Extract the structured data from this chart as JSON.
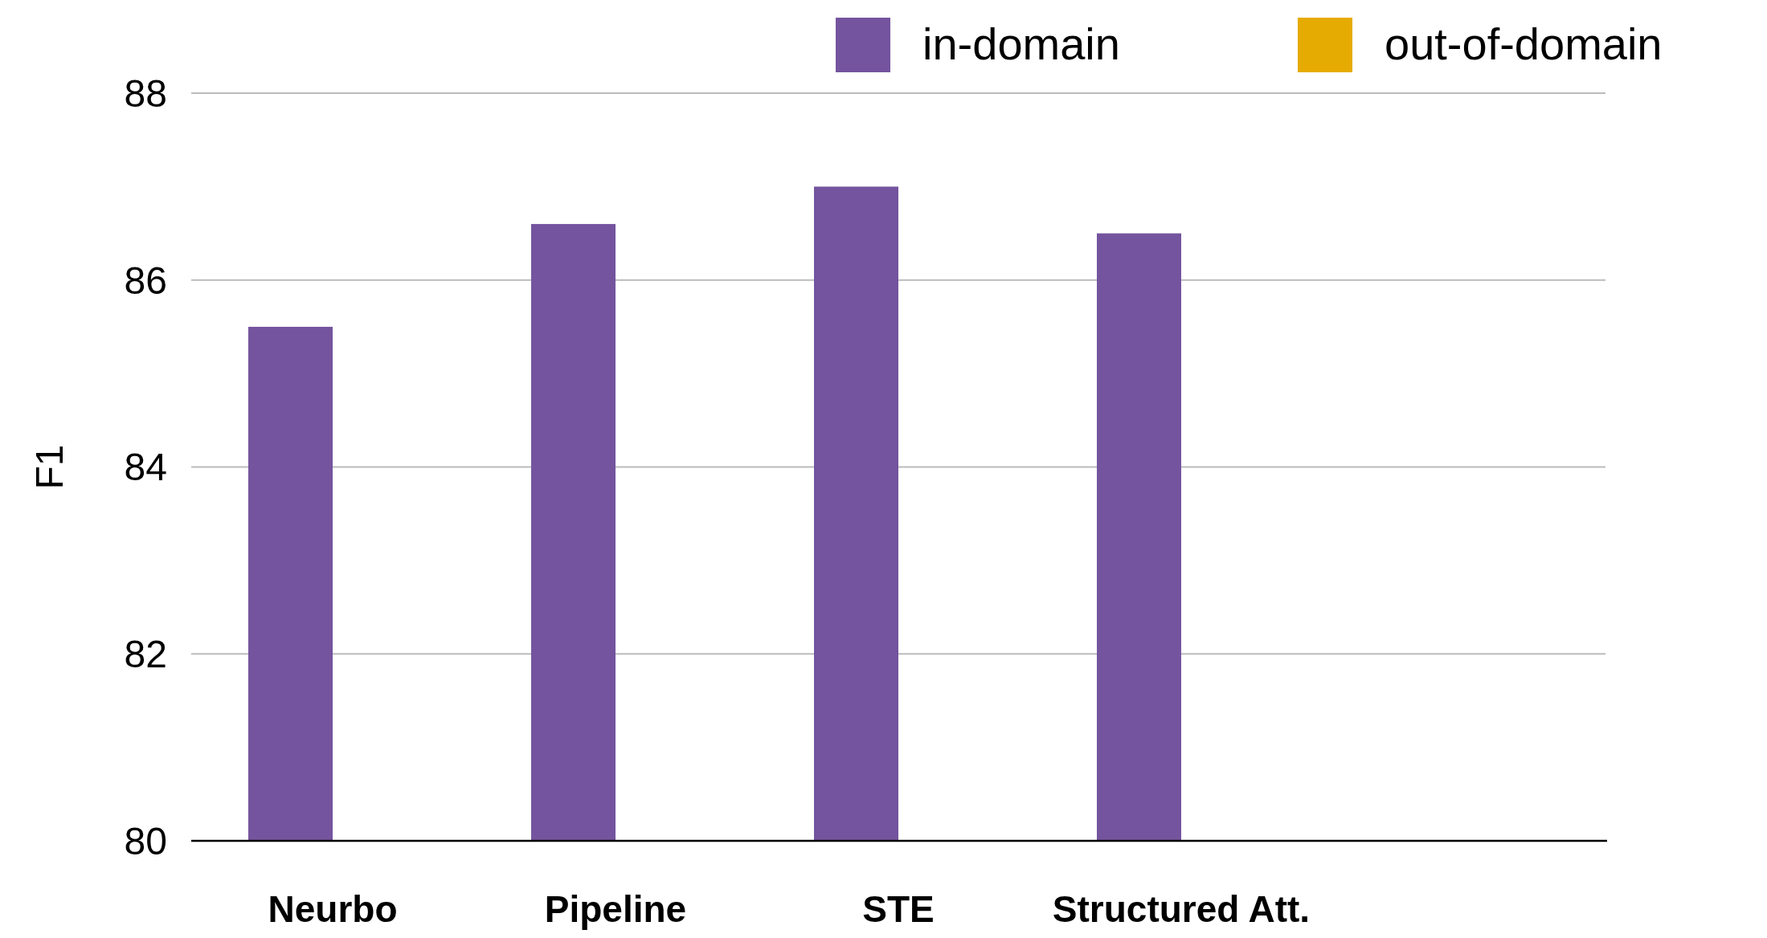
{
  "chart_data": {
    "type": "bar",
    "ylabel": "F1",
    "categories": [
      "Neurbo",
      "Pipeline",
      "STE",
      "Structured Att.",
      null
    ],
    "series": [
      {
        "name": "in-domain",
        "color": "#74549e",
        "values": [
          85.5,
          86.6,
          87.0,
          86.5,
          null
        ]
      },
      {
        "name": "out-of-domain",
        "color": "#e6ab02",
        "values": [
          null,
          null,
          null,
          null,
          null
        ]
      }
    ],
    "ylim": [
      80,
      88
    ],
    "yticks": [
      80,
      82,
      84,
      86,
      88
    ],
    "grid": "y",
    "legend": "top right"
  }
}
